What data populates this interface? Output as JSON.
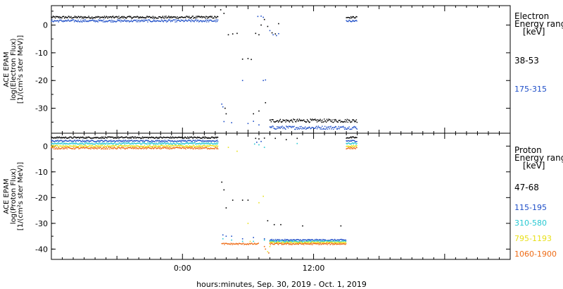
{
  "xlabel": "hours:minutes, Sep. 30, 2019 - Oct.  1, 2019",
  "x_ticks": [
    "0:00",
    "12:00"
  ],
  "x_range_hours": [
    -12,
    30
  ],
  "chart_data": [
    {
      "type": "scatter",
      "panel": "electron",
      "ylabel_lines": [
        "ACE EPAM",
        "log(Electron Flux)",
        "[1/(cm²s ster MeV)]"
      ],
      "ylim": [
        -39,
        7
      ],
      "yticks": [
        0,
        -10,
        -20,
        -30
      ],
      "legend_title": [
        "Electron",
        "Energy ranges",
        "[keV]"
      ],
      "series": [
        {
          "name": "38-53",
          "color": "#000000",
          "segments": [
            {
              "x": [
                -12,
                3.3
              ],
              "y": 2.8,
              "noise": 0.4
            },
            {
              "x": [
                8.0,
                16.0
              ],
              "y": -34.5,
              "noise": 0.6
            },
            {
              "x": [
                15.0,
                16.0
              ],
              "y": 2.8,
              "noise": 0.3
            }
          ],
          "points": [
            [
              3.5,
              5.5
            ],
            [
              3.8,
              4.2
            ],
            [
              3.9,
              -30
            ],
            [
              4.0,
              -32
            ],
            [
              4.2,
              -3.5
            ],
            [
              4.6,
              -3.2
            ],
            [
              5.0,
              -3.0
            ],
            [
              5.5,
              -12.3
            ],
            [
              6.0,
              -12.1
            ],
            [
              6.3,
              -12.4
            ],
            [
              6.7,
              -3
            ],
            [
              7.0,
              -3.5
            ],
            [
              7.2,
              0
            ],
            [
              7.5,
              2
            ],
            [
              7.8,
              -0.5
            ],
            [
              8.2,
              -2.8
            ],
            [
              8.5,
              -3.2
            ],
            [
              6.5,
              -32
            ],
            [
              7.0,
              -31
            ],
            [
              7.6,
              -28
            ],
            [
              8.8,
              0.5
            ]
          ]
        },
        {
          "name": "175-315",
          "color": "#1f4fc8",
          "segments": [
            {
              "x": [
                -12,
                3.3
              ],
              "y": 1.5,
              "noise": 0.4
            },
            {
              "x": [
                8.0,
                16.0
              ],
              "y": -37,
              "noise": 0.6
            },
            {
              "x": [
                15.0,
                16.0
              ],
              "y": 1.5,
              "noise": 0.3
            }
          ],
          "points": [
            [
              3.6,
              -28.5
            ],
            [
              3.7,
              -29.5
            ],
            [
              3.8,
              -34.8
            ],
            [
              4.5,
              -35.2
            ],
            [
              5.5,
              -20
            ],
            [
              6.0,
              -35.5
            ],
            [
              6.5,
              -34.7
            ],
            [
              7.0,
              -36
            ],
            [
              7.4,
              -20
            ],
            [
              7.6,
              -19.8
            ],
            [
              8.0,
              -2
            ],
            [
              8.3,
              -3.5
            ],
            [
              8.6,
              -3.8
            ],
            [
              8.8,
              -3.1
            ],
            [
              7.2,
              3.2
            ],
            [
              7.4,
              2.8
            ],
            [
              6.9,
              3.1
            ]
          ]
        }
      ]
    },
    {
      "type": "scatter",
      "panel": "proton",
      "ylabel_lines": [
        "ACE EPAM",
        "log(Proton Flux)",
        "[1/(cm²s ster MeV)]"
      ],
      "ylim": [
        -44,
        5
      ],
      "yticks": [
        0,
        -10,
        -20,
        -30,
        -40
      ],
      "legend_title": [
        "Proton",
        "Energy ranges",
        "[keV]"
      ],
      "series": [
        {
          "name": "47-68",
          "color": "#000000",
          "segments": [
            {
              "x": [
                -12,
                3.3
              ],
              "y": 3.3,
              "noise": 0.3
            },
            {
              "x": [
                15.0,
                16.0
              ],
              "y": 3.3,
              "noise": 0.3
            }
          ],
          "points": [
            [
              3.6,
              -14
            ],
            [
              3.8,
              -17
            ],
            [
              4.0,
              -24
            ],
            [
              4.6,
              -21
            ],
            [
              5.5,
              -21
            ],
            [
              6.0,
              -21
            ],
            [
              6.7,
              3
            ],
            [
              7.0,
              2.8
            ],
            [
              7.5,
              3.1
            ],
            [
              8.5,
              3
            ],
            [
              9.5,
              2.5
            ],
            [
              10.5,
              3
            ],
            [
              7.8,
              -29
            ],
            [
              8.4,
              -30.5
            ],
            [
              9.0,
              -30.5
            ],
            [
              11.0,
              -31
            ],
            [
              14.5,
              -31
            ]
          ]
        },
        {
          "name": "115-195",
          "color": "#1f4fc8",
          "segments": [
            {
              "x": [
                -12,
                3.3
              ],
              "y": 2.0,
              "noise": 0.3
            },
            {
              "x": [
                8.0,
                15.0
              ],
              "y": -36.5,
              "noise": 0.3
            },
            {
              "x": [
                15.0,
                16.0
              ],
              "y": 2.0,
              "noise": 0.3
            }
          ],
          "points": [
            [
              3.7,
              -34.5
            ],
            [
              4.0,
              -35
            ],
            [
              4.5,
              -35
            ],
            [
              5.5,
              -36
            ],
            [
              6.5,
              -35.5
            ],
            [
              7.5,
              -36
            ],
            [
              6.8,
              1.5
            ],
            [
              7.2,
              1.8
            ]
          ]
        },
        {
          "name": "310-580",
          "color": "#27c8d2",
          "segments": [
            {
              "x": [
                -12,
                3.3
              ],
              "y": 1.0,
              "noise": 0.3
            },
            {
              "x": [
                8.0,
                15.0
              ],
              "y": -37,
              "noise": 0.3
            },
            {
              "x": [
                15.0,
                16.0
              ],
              "y": 1.0,
              "noise": 0.3
            }
          ],
          "points": [
            [
              3.7,
              -36
            ],
            [
              4.5,
              -36.5
            ],
            [
              5.5,
              -37
            ],
            [
              6.5,
              -37
            ],
            [
              7.5,
              -36.5
            ],
            [
              6.6,
              0.8
            ],
            [
              7.0,
              0.5
            ],
            [
              7.5,
              -0.5
            ],
            [
              10.5,
              1
            ]
          ]
        },
        {
          "name": "795-1193",
          "color": "#e8e019",
          "segments": [
            {
              "x": [
                -12,
                3.3
              ],
              "y": 0.0,
              "noise": 0.35
            },
            {
              "x": [
                8.0,
                15.0
              ],
              "y": -37.5,
              "noise": 0.3
            },
            {
              "x": [
                15.0,
                16.0
              ],
              "y": 0.0,
              "noise": 0.3
            }
          ],
          "points": [
            [
              4.2,
              -0.5
            ],
            [
              5.0,
              -2
            ],
            [
              6.0,
              -30
            ],
            [
              7.0,
              -22
            ],
            [
              7.4,
              -19.5
            ],
            [
              7.8,
              -41
            ],
            [
              8.0,
              -39
            ],
            [
              6.2,
              -37
            ],
            [
              6.8,
              -38
            ]
          ]
        },
        {
          "name": "1060-1900",
          "color": "#ee6b15",
          "segments": [
            {
              "x": [
                -12,
                3.3
              ],
              "y": -0.8,
              "noise": 0.35
            },
            {
              "x": [
                3.6,
                7.0
              ],
              "y": -38,
              "noise": 0.3
            },
            {
              "x": [
                8.0,
                15.0
              ],
              "y": -38,
              "noise": 0.3
            },
            {
              "x": [
                15.0,
                16.0
              ],
              "y": -0.8,
              "noise": 0.3
            }
          ],
          "points": [
            [
              7.6,
              -40
            ],
            [
              7.9,
              -41.5
            ],
            [
              7.5,
              -39
            ]
          ]
        }
      ]
    }
  ]
}
